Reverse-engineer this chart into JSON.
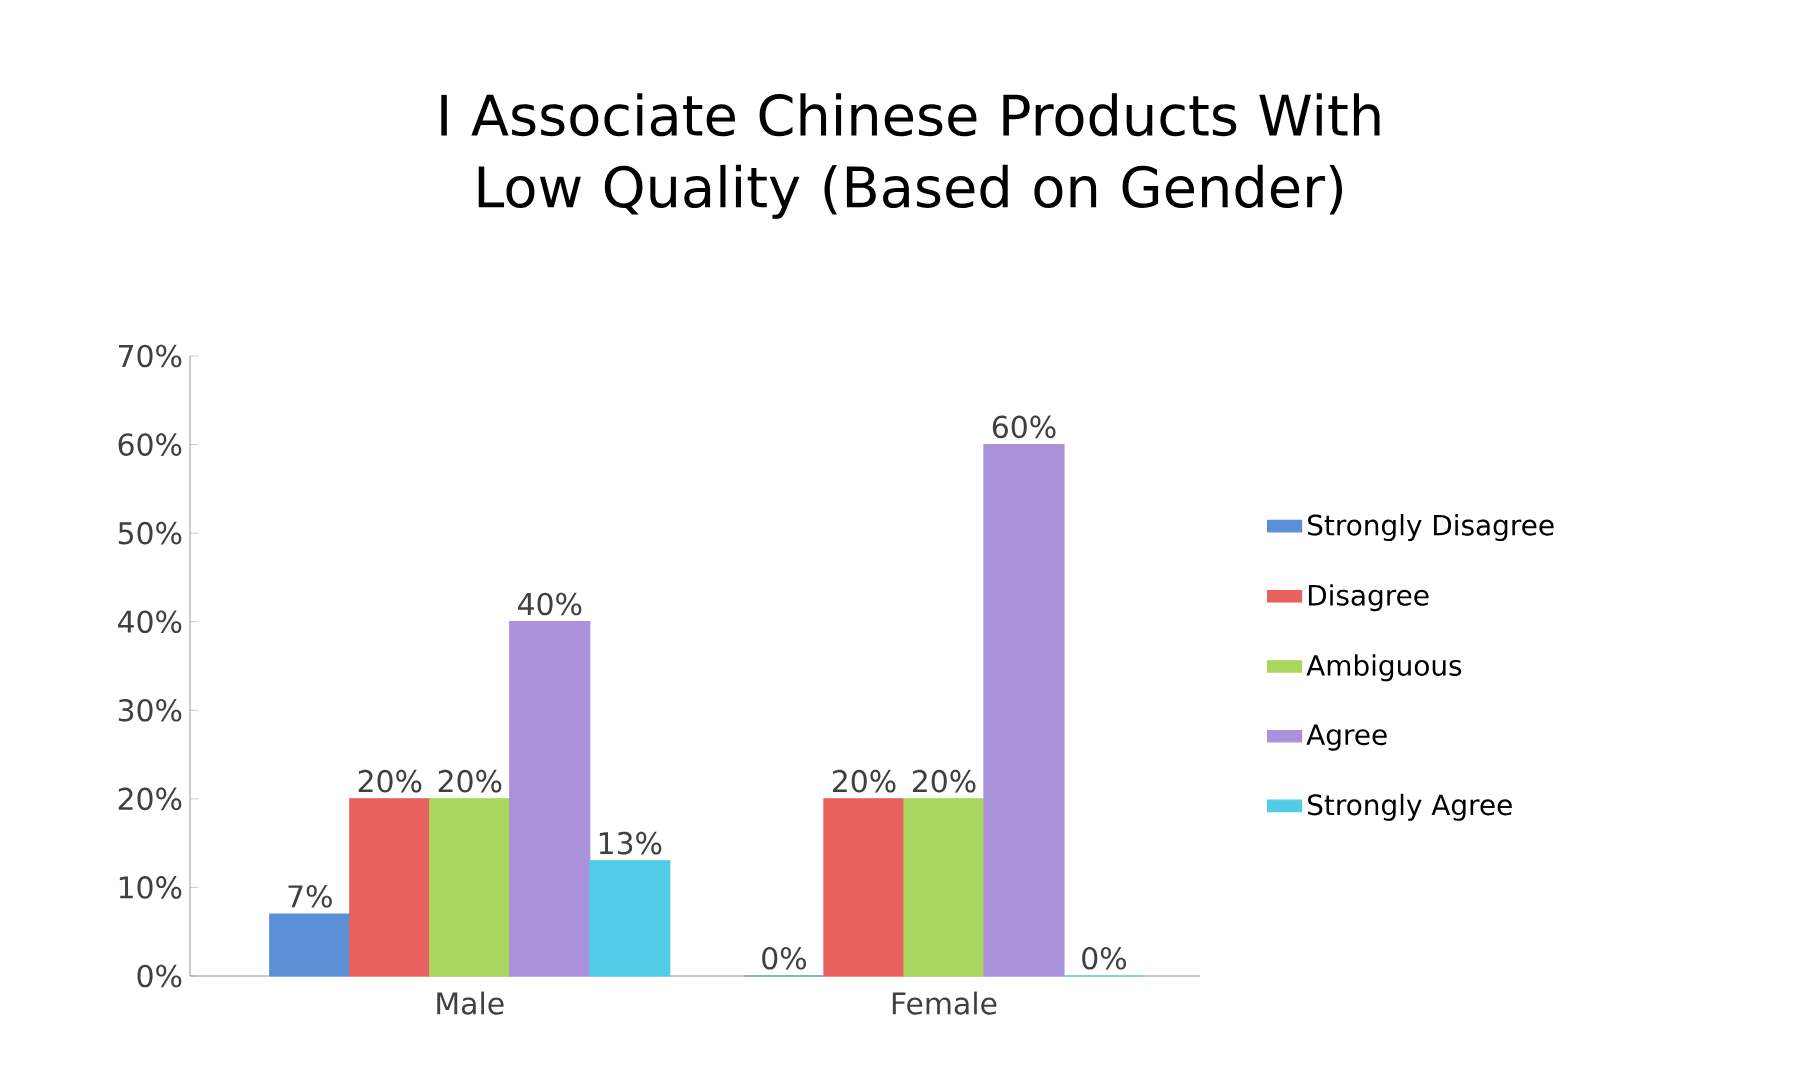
{
  "chart_data": {
    "type": "bar",
    "title": "I Associate Chinese Products With Low Quality (Based on Gender)",
    "categories": [
      "Male",
      "Female"
    ],
    "series": [
      {
        "name": "Strongly Disagree",
        "color": "#5b8fd6",
        "values": [
          7,
          0
        ],
        "value_labels": [
          "7%",
          "0%"
        ]
      },
      {
        "name": "Disagree",
        "color": "#e8615f",
        "values": [
          20,
          20
        ],
        "value_labels": [
          "20%",
          "20%"
        ]
      },
      {
        "name": "Ambiguous",
        "color": "#a9d65c",
        "values": [
          20,
          20
        ],
        "value_labels": [
          "20%",
          "20%"
        ]
      },
      {
        "name": "Agree",
        "color": "#a992d9",
        "values": [
          40,
          60
        ],
        "value_labels": [
          "40%",
          "60%"
        ]
      },
      {
        "name": "Strongly Agree",
        "color": "#52cbe6",
        "values": [
          13,
          0
        ],
        "value_labels": [
          "13%",
          "0%"
        ]
      }
    ],
    "ylim": [
      0,
      70
    ],
    "yticks": [
      {
        "value": 0,
        "label": "0%"
      },
      {
        "value": 10,
        "label": "10%"
      },
      {
        "value": 20,
        "label": "20%"
      },
      {
        "value": 30,
        "label": "30%"
      },
      {
        "value": 40,
        "label": "40%"
      },
      {
        "value": 50,
        "label": "50%"
      },
      {
        "value": 60,
        "label": "60%"
      },
      {
        "value": 70,
        "label": "70%"
      }
    ],
    "legend": "right"
  }
}
